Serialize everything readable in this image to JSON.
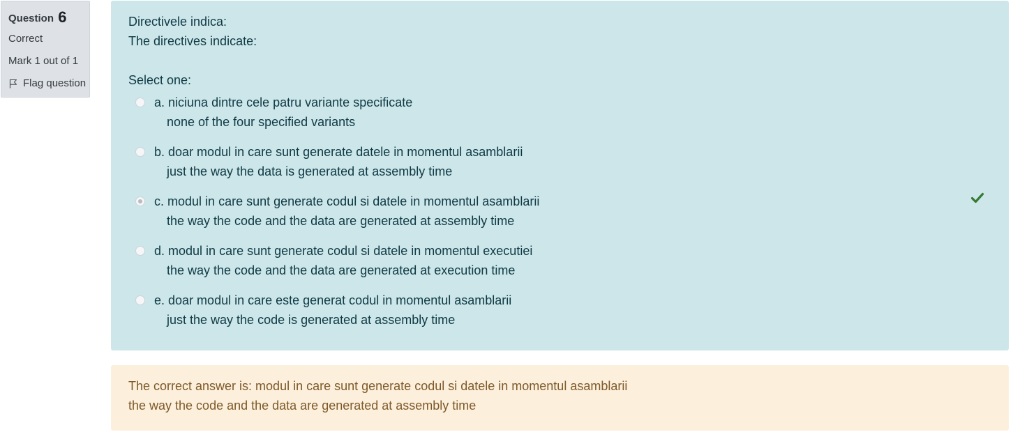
{
  "info": {
    "question_label": "Question",
    "question_number": "6",
    "state": "Correct",
    "grade": "Mark 1 out of 1",
    "flag_label": "Flag question"
  },
  "question": {
    "text_ro": "Directivele indica:",
    "text_en": "The directives indicate:",
    "prompt": "Select one:",
    "options": [
      {
        "letter": "a.",
        "ro": "niciuna dintre cele patru variante specificate",
        "en": "none of the four specified variants",
        "checked": false
      },
      {
        "letter": "b.",
        "ro": "doar modul in care sunt generate datele in momentul asamblarii",
        "en": "just the way the data is generated at assembly time",
        "checked": false
      },
      {
        "letter": "c.",
        "ro": "modul in care sunt generate codul si datele in momentul asamblarii",
        "en": "the way the code and the data are generated at assembly time",
        "checked": true
      },
      {
        "letter": "d.",
        "ro": "modul in care sunt generate codul si datele in momentul executiei",
        "en": "the way the code and the data are generated at execution time",
        "checked": false
      },
      {
        "letter": "e.",
        "ro": "doar modul in care este generat codul in momentul asamblarii",
        "en": "just the way the code is generated at assembly time",
        "checked": false
      }
    ],
    "correct_icon": "check-icon",
    "correct_color": "#357a32"
  },
  "feedback": {
    "line1": "The correct answer is: modul in care sunt generate codul si datele in momentul asamblarii",
    "line2": "the way the code and the data are generated at assembly time"
  },
  "colors": {
    "formulation_bg": "#cce6ea",
    "feedback_bg": "#fcefdc",
    "info_bg": "#dee2e6"
  }
}
